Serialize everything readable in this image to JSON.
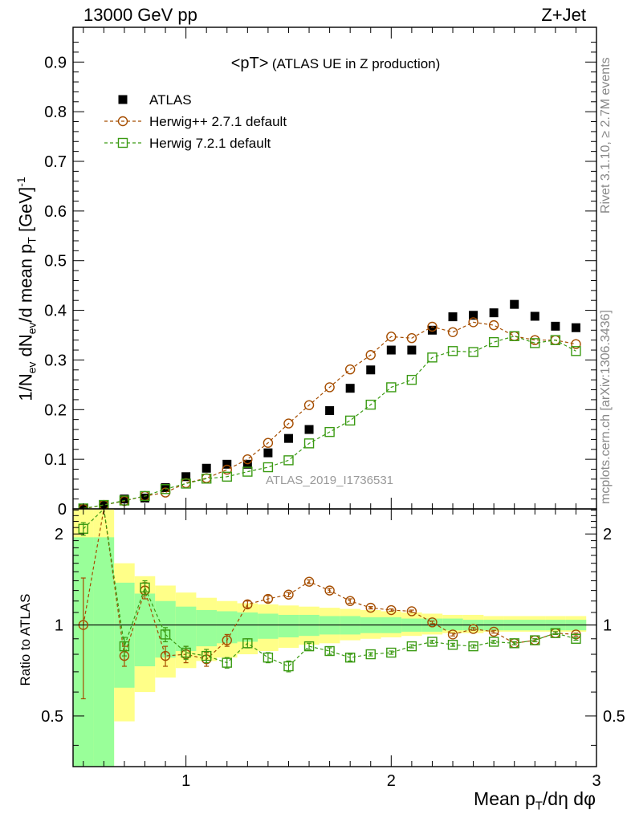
{
  "header": {
    "left": "13000 GeV pp",
    "right": "Z+Jet"
  },
  "plot_title": {
    "main": "<pT>",
    "sub": "(ATLAS UE in Z production)"
  },
  "side_labels": {
    "rivet": "Rivet 3.1.10, ≥ 2.7M events",
    "mcplots": "mcplots.cern.ch [arXiv:1306.3436]"
  },
  "watermark": "ATLAS_2019_I1736531",
  "legend": [
    {
      "label": "ATLAS",
      "marker": "filled-square",
      "color": "#000000"
    },
    {
      "label": "Herwig++ 2.7.1 default",
      "marker": "open-circle",
      "color": "#a54d00"
    },
    {
      "label": "Herwig 7.2.1 default",
      "marker": "open-square",
      "color": "#3a9a12"
    }
  ],
  "colors": {
    "data": "#000000",
    "herwigpp": "#a54d00",
    "herwig7": "#3a9a12",
    "band_inner": "#99ff99",
    "band_outer": "#ffff88"
  },
  "chart_data": [
    {
      "type": "scatter",
      "panel": "main",
      "xlabel": "",
      "ylabel": "1/N_ev dN_ev/d mean p_T [GeV]^-1",
      "xlim": [
        0.45,
        3.0
      ],
      "ylim": [
        0,
        0.97
      ],
      "y_ticks": [
        0,
        0.1,
        0.2,
        0.3,
        0.4,
        0.5,
        0.6,
        0.7,
        0.8,
        0.9
      ],
      "y_tick_labels": [
        "0",
        "0.1",
        "0.2",
        "0.3",
        "0.4",
        "0.5",
        "0.6",
        "0.7",
        "0.8",
        "0.9"
      ],
      "x": [
        0.5,
        0.6,
        0.7,
        0.8,
        0.9,
        1.0,
        1.1,
        1.2,
        1.3,
        1.4,
        1.5,
        1.6,
        1.7,
        1.8,
        1.9,
        2.0,
        2.1,
        2.2,
        2.3,
        2.4,
        2.5,
        2.6,
        2.7,
        2.8,
        2.9
      ],
      "series": [
        {
          "name": "ATLAS",
          "values": [
            0.0,
            0.008,
            0.02,
            0.022,
            0.043,
            0.065,
            0.082,
            0.09,
            0.09,
            0.113,
            0.142,
            0.16,
            0.198,
            0.243,
            0.28,
            0.32,
            0.32,
            0.36,
            0.387,
            0.39,
            0.395,
            0.412,
            0.388,
            0.368,
            0.365
          ]
        },
        {
          "name": "Herwig++ 2.7.1 default",
          "values": [
            0.0,
            0.008,
            0.016,
            0.026,
            0.033,
            0.052,
            0.062,
            0.079,
            0.1,
            0.133,
            0.172,
            0.209,
            0.245,
            0.281,
            0.31,
            0.347,
            0.344,
            0.367,
            0.356,
            0.376,
            0.37,
            0.348,
            0.34,
            0.34,
            0.332
          ]
        },
        {
          "name": "Herwig 7.2.1 default",
          "values": [
            0.001,
            0.008,
            0.017,
            0.026,
            0.04,
            0.051,
            0.061,
            0.065,
            0.075,
            0.084,
            0.098,
            0.132,
            0.155,
            0.178,
            0.21,
            0.245,
            0.26,
            0.305,
            0.318,
            0.316,
            0.336,
            0.348,
            0.334,
            0.34,
            0.318
          ]
        }
      ]
    },
    {
      "type": "scatter",
      "panel": "ratio",
      "xlabel": "Mean p_T/dη dφ",
      "ylabel": "Ratio to ATLAS",
      "xlim": [
        0.45,
        3.0
      ],
      "ylim": [
        0.34,
        2.42
      ],
      "log_y": true,
      "x_ticks": [
        1,
        2,
        3
      ],
      "x_tick_labels": [
        "1",
        "2",
        "3"
      ],
      "y_ticks": [
        0.5,
        1,
        2
      ],
      "y_tick_labels": [
        "0.5",
        "1",
        "2"
      ],
      "reference_line": 1,
      "bins": [
        0.45,
        0.55,
        0.65,
        0.75,
        0.85,
        0.95,
        1.05,
        1.15,
        1.25,
        1.35,
        1.45,
        1.55,
        1.65,
        1.75,
        1.85,
        1.95,
        2.05,
        2.15,
        2.25,
        2.35,
        2.45,
        2.55,
        2.65,
        2.75,
        2.85,
        2.95
      ],
      "uncertainty_bands": {
        "inner_lo": [
          0.34,
          0.34,
          0.62,
          0.73,
          0.78,
          0.82,
          0.85,
          0.87,
          0.88,
          0.9,
          0.91,
          0.92,
          0.93,
          0.93,
          0.94,
          0.94,
          0.95,
          0.95,
          0.96,
          0.96,
          0.96,
          0.96,
          0.96,
          0.96,
          0.96
        ],
        "inner_hi": [
          1.95,
          1.95,
          1.38,
          1.27,
          1.2,
          1.15,
          1.12,
          1.11,
          1.1,
          1.09,
          1.08,
          1.08,
          1.07,
          1.07,
          1.06,
          1.06,
          1.05,
          1.05,
          1.05,
          1.04,
          1.04,
          1.04,
          1.04,
          1.04,
          1.04
        ],
        "outer_lo": [
          0.34,
          0.34,
          0.48,
          0.6,
          0.67,
          0.72,
          0.76,
          0.78,
          0.8,
          0.82,
          0.84,
          0.86,
          0.87,
          0.89,
          0.9,
          0.91,
          0.92,
          0.93,
          0.94,
          0.94,
          0.95,
          0.95,
          0.95,
          0.95,
          0.95
        ],
        "outer_hi": [
          2.42,
          2.42,
          1.6,
          1.45,
          1.35,
          1.28,
          1.23,
          1.2,
          1.18,
          1.17,
          1.16,
          1.15,
          1.14,
          1.13,
          1.12,
          1.11,
          1.1,
          1.09,
          1.08,
          1.08,
          1.07,
          1.07,
          1.07,
          1.07,
          1.07
        ]
      },
      "x": [
        0.5,
        0.6,
        0.7,
        0.8,
        0.9,
        1.0,
        1.1,
        1.2,
        1.3,
        1.4,
        1.5,
        1.6,
        1.7,
        1.8,
        1.9,
        2.0,
        2.1,
        2.2,
        2.3,
        2.4,
        2.5,
        2.6,
        2.7,
        2.8,
        2.9
      ],
      "series": [
        {
          "name": "Herwig++ 2.7.1 default",
          "values": [
            1.0,
            2.6,
            0.79,
            1.3,
            0.79,
            0.8,
            0.77,
            0.89,
            1.17,
            1.22,
            1.26,
            1.39,
            1.3,
            1.2,
            1.14,
            1.12,
            1.11,
            1.02,
            0.93,
            0.97,
            0.95,
            0.87,
            0.89,
            0.94,
            0.93
          ],
          "err": [
            0.43,
            0.0,
            0.06,
            0.08,
            0.06,
            0.05,
            0.04,
            0.04,
            0.03,
            0.03,
            0.02,
            0.02,
            0.02,
            0.02,
            0.01,
            0.01,
            0.01,
            0.01,
            0.01,
            0.01,
            0.01,
            0.01,
            0.01,
            0.01,
            0.01
          ]
        },
        {
          "name": "Herwig 7.2.1 default",
          "values": [
            2.08,
            2.6,
            0.85,
            1.33,
            0.93,
            0.81,
            0.79,
            0.75,
            0.87,
            0.78,
            0.73,
            0.85,
            0.82,
            0.78,
            0.8,
            0.81,
            0.85,
            0.88,
            0.86,
            0.85,
            0.88,
            0.87,
            0.89,
            0.94,
            0.9
          ],
          "err": [
            0.1,
            0.0,
            0.06,
            0.07,
            0.05,
            0.04,
            0.04,
            0.03,
            0.03,
            0.03,
            0.03,
            0.02,
            0.02,
            0.02,
            0.01,
            0.01,
            0.01,
            0.01,
            0.01,
            0.01,
            0.01,
            0.01,
            0.01,
            0.01,
            0.01
          ]
        }
      ]
    }
  ]
}
